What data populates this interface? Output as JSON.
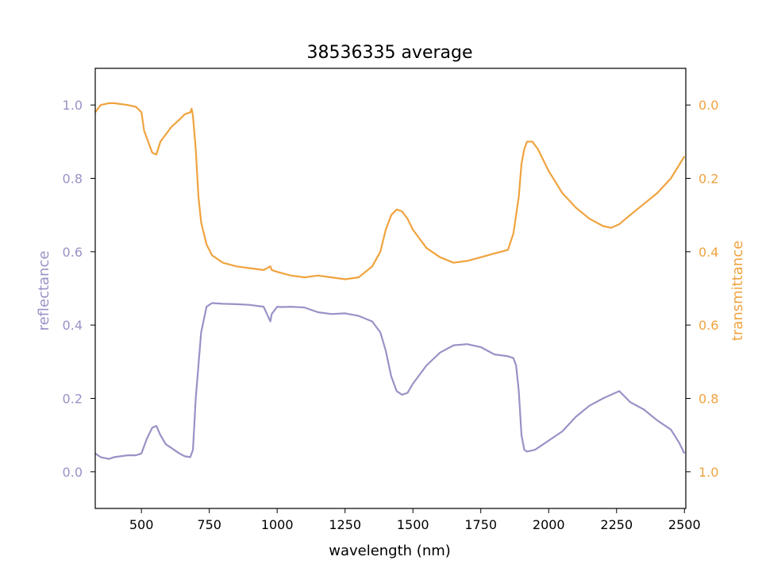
{
  "chart_data": {
    "type": "line",
    "title": "38536335 average",
    "xlabel": "wavelength (nm)",
    "ylabel_left": "reflectance",
    "ylabel_right": "transmittance",
    "xlim": [
      330,
      2505
    ],
    "ylim_left": [
      -0.1,
      1.1
    ],
    "ylim_right": [
      1.1,
      -0.1
    ],
    "right_axis_inverted": true,
    "grid": false,
    "x_ticks": [
      500,
      750,
      1000,
      1250,
      1500,
      1750,
      2000,
      2250,
      2500
    ],
    "x_tick_labels": [
      "500",
      "750",
      "1000",
      "1250",
      "1500",
      "1750",
      "2000",
      "2250",
      "2500"
    ],
    "y_left_ticks": [
      0.0,
      0.2,
      0.4,
      0.6,
      0.8,
      1.0
    ],
    "y_left_tick_labels": [
      "0.0",
      "0.2",
      "0.4",
      "0.6",
      "0.8",
      "1.0"
    ],
    "y_right_ticks": [
      0.0,
      0.2,
      0.4,
      0.6,
      0.8,
      1.0
    ],
    "y_right_tick_labels": [
      "0.0",
      "0.2",
      "0.4",
      "0.6",
      "0.8",
      "1.0"
    ],
    "colors": {
      "reflectance": "#9893c6",
      "transmittance": "#f0a33f"
    },
    "series": [
      {
        "axis": "left",
        "color": "#9893c6",
        "x": [
          330,
          350,
          380,
          400,
          450,
          480,
          500,
          520,
          540,
          555,
          570,
          590,
          610,
          640,
          660,
          680,
          690,
          700,
          720,
          740,
          760,
          800,
          850,
          900,
          950,
          975,
          980,
          1000,
          1020,
          1050,
          1100,
          1150,
          1200,
          1250,
          1300,
          1350,
          1380,
          1400,
          1420,
          1440,
          1460,
          1480,
          1500,
          1550,
          1600,
          1650,
          1700,
          1750,
          1800,
          1850,
          1870,
          1880,
          1890,
          1900,
          1910,
          1920,
          1950,
          2000,
          2050,
          2100,
          2150,
          2200,
          2230,
          2260,
          2300,
          2350,
          2400,
          2450,
          2480,
          2500
        ],
        "y": [
          0.05,
          0.04,
          0.035,
          0.04,
          0.045,
          0.045,
          0.05,
          0.09,
          0.12,
          0.125,
          0.1,
          0.075,
          0.065,
          0.05,
          0.042,
          0.04,
          0.06,
          0.2,
          0.38,
          0.45,
          0.46,
          0.458,
          0.457,
          0.455,
          0.45,
          0.41,
          0.43,
          0.45,
          0.449,
          0.45,
          0.448,
          0.435,
          0.43,
          0.432,
          0.425,
          0.41,
          0.38,
          0.33,
          0.26,
          0.22,
          0.21,
          0.215,
          0.24,
          0.29,
          0.325,
          0.345,
          0.348,
          0.34,
          0.32,
          0.315,
          0.31,
          0.29,
          0.22,
          0.1,
          0.06,
          0.055,
          0.06,
          0.085,
          0.11,
          0.15,
          0.18,
          0.2,
          0.21,
          0.22,
          0.19,
          0.17,
          0.14,
          0.115,
          0.08,
          0.05
        ]
      },
      {
        "axis": "right",
        "color": "#f0a33f",
        "x": [
          330,
          350,
          380,
          400,
          450,
          480,
          500,
          510,
          520,
          540,
          555,
          570,
          590,
          610,
          640,
          660,
          680,
          685,
          690,
          700,
          710,
          720,
          740,
          760,
          800,
          850,
          900,
          950,
          975,
          980,
          1000,
          1050,
          1100,
          1150,
          1200,
          1250,
          1300,
          1350,
          1380,
          1400,
          1420,
          1440,
          1460,
          1480,
          1500,
          1550,
          1600,
          1650,
          1700,
          1750,
          1800,
          1850,
          1870,
          1890,
          1900,
          1910,
          1920,
          1940,
          1960,
          2000,
          2050,
          2100,
          2150,
          2200,
          2230,
          2260,
          2300,
          2350,
          2400,
          2450,
          2500
        ],
        "y": [
          0.02,
          0.0,
          -0.005,
          -0.005,
          0.0,
          0.005,
          0.02,
          0.07,
          0.09,
          0.13,
          0.135,
          0.1,
          0.08,
          0.06,
          0.04,
          0.025,
          0.02,
          0.01,
          0.03,
          0.12,
          0.25,
          0.32,
          0.38,
          0.41,
          0.43,
          0.44,
          0.445,
          0.45,
          0.44,
          0.45,
          0.455,
          0.465,
          0.47,
          0.465,
          0.47,
          0.475,
          0.47,
          0.44,
          0.4,
          0.34,
          0.3,
          0.285,
          0.29,
          0.31,
          0.34,
          0.39,
          0.415,
          0.43,
          0.425,
          0.415,
          0.405,
          0.395,
          0.35,
          0.25,
          0.16,
          0.12,
          0.1,
          0.1,
          0.12,
          0.18,
          0.24,
          0.28,
          0.31,
          0.33,
          0.335,
          0.325,
          0.3,
          0.27,
          0.24,
          0.2,
          0.14
        ]
      }
    ]
  }
}
